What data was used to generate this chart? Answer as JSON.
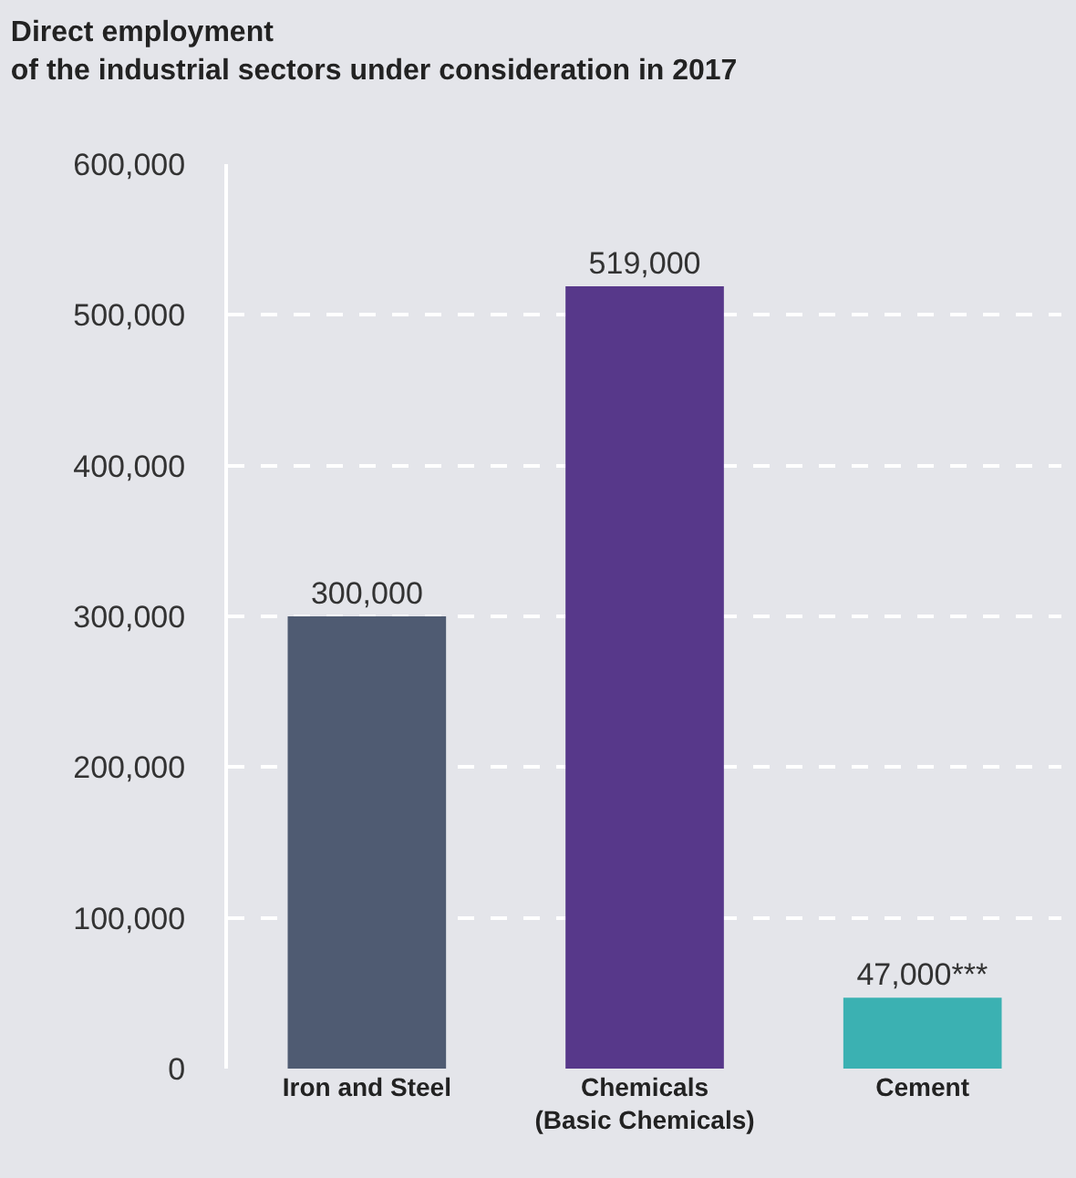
{
  "chart_data": {
    "type": "bar",
    "title": "Direct employment\nof the industrial sectors under consideration in 2017",
    "categories": [
      "Iron and Steel",
      "Chemicals\n(Basic Chemicals)",
      "Cement"
    ],
    "values": [
      300000,
      519000,
      47000
    ],
    "colors": [
      "#4f5b72",
      "#57388a",
      "#3bb1b2"
    ],
    "value_labels": [
      "300,000",
      "519,000",
      "47,000***"
    ],
    "ylim": [
      0,
      600000
    ],
    "yticks": [
      {
        "value": 0,
        "label": "0"
      },
      {
        "value": 100000,
        "label": "100,000"
      },
      {
        "value": 200000,
        "label": "200,000"
      },
      {
        "value": 300000,
        "label": "300,000"
      },
      {
        "value": 400000,
        "label": "400,000"
      },
      {
        "value": 500000,
        "label": "500,000"
      },
      {
        "value": 600000,
        "label": "600,000"
      }
    ],
    "grid": "y"
  }
}
